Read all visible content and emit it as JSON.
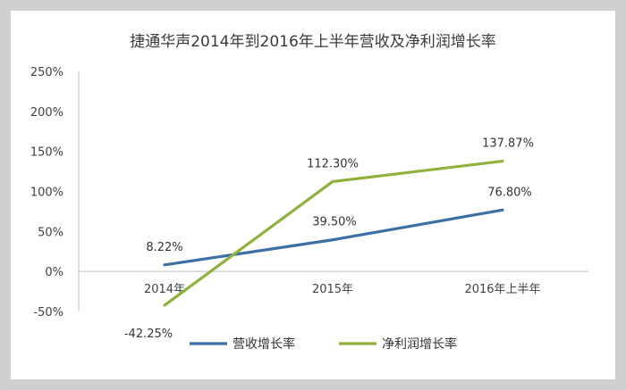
{
  "chart_data": {
    "type": "line",
    "title": "捷通华声2014年到2016年上半年营收及净利润增长率",
    "categories": [
      "2014年",
      "2015年",
      "2016年上半年"
    ],
    "y_ticks": [
      "250%",
      "200%",
      "150%",
      "100%",
      "50%",
      "0%",
      "-50%"
    ],
    "ylim": [
      -50,
      250
    ],
    "ytick_step": 50,
    "grid": false,
    "legend_position": "bottom",
    "series": [
      {
        "name": "营收增长率",
        "color": "#3b6fa6",
        "values": [
          8.22,
          39.5,
          76.8
        ],
        "labels": [
          "8.22%",
          "39.50%",
          "76.80%"
        ]
      },
      {
        "name": "净利润增长率",
        "color": "#8fb13d",
        "values": [
          -42.25,
          112.3,
          137.87
        ],
        "labels": [
          "-42.25%",
          "112.30%",
          "137.87%"
        ]
      }
    ]
  }
}
